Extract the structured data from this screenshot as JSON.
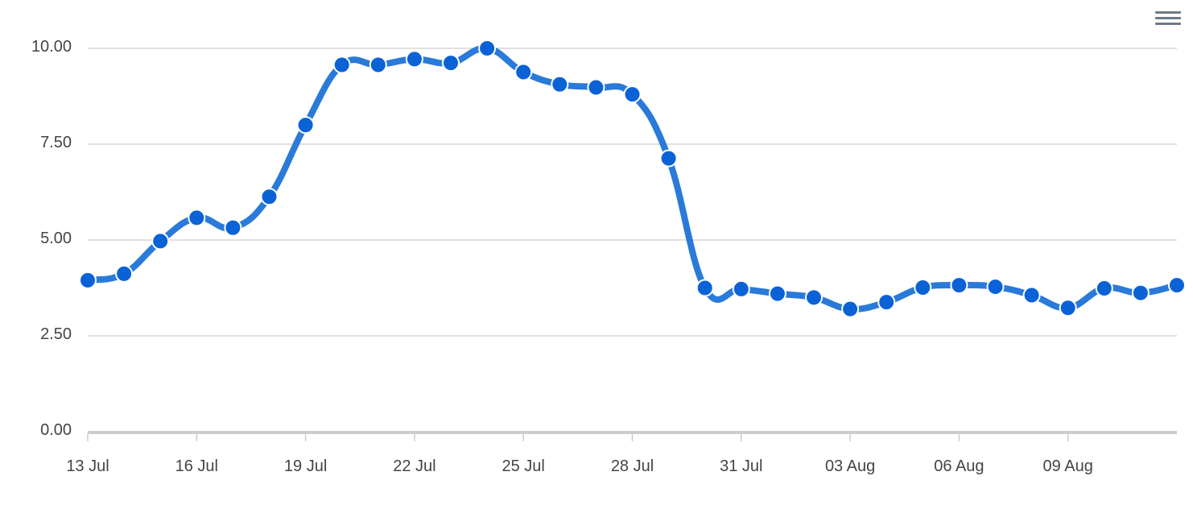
{
  "chart_data": {
    "type": "line",
    "title": "",
    "xlabel": "",
    "ylabel": "",
    "ylim": [
      0,
      10
    ],
    "grid": true,
    "x_tick_labels": [
      "13 Jul",
      "16 Jul",
      "19 Jul",
      "22 Jul",
      "25 Jul",
      "28 Jul",
      "31 Jul",
      "03 Aug",
      "06 Aug",
      "09 Aug"
    ],
    "y_tick_labels": [
      "0.00",
      "2.50",
      "5.00",
      "7.50",
      "10.00"
    ],
    "y_ticks": [
      0,
      2.5,
      5,
      7.5,
      10
    ],
    "categories": [
      "13 Jul",
      "14 Jul",
      "15 Jul",
      "16 Jul",
      "17 Jul",
      "18 Jul",
      "19 Jul",
      "20 Jul",
      "21 Jul",
      "22 Jul",
      "23 Jul",
      "24 Jul",
      "25 Jul",
      "26 Jul",
      "27 Jul",
      "28 Jul",
      "29 Jul",
      "30 Jul",
      "31 Jul",
      "01 Aug",
      "02 Aug",
      "03 Aug",
      "04 Aug",
      "05 Aug",
      "06 Aug",
      "07 Aug",
      "08 Aug",
      "09 Aug",
      "10 Aug",
      "11 Aug",
      "12 Aug"
    ],
    "series": [
      {
        "values": [
          3.95,
          4.12,
          4.97,
          5.58,
          5.32,
          6.13,
          8.0,
          9.57,
          9.57,
          9.72,
          9.62,
          10.0,
          9.38,
          9.06,
          8.98,
          8.8,
          7.13,
          3.75,
          3.72,
          3.6,
          3.5,
          3.2,
          3.38,
          3.76,
          3.82,
          3.78,
          3.56,
          3.23,
          3.74,
          3.62,
          3.82
        ]
      }
    ],
    "colors": {
      "line": "#2a7ad9",
      "marker": "#0a62d6",
      "marker_stroke": "#ffffff",
      "grid": "#d6d6d6",
      "axis": "#cccccc"
    }
  },
  "toolbar": {
    "menu_icon": "hamburger-menu-icon"
  }
}
